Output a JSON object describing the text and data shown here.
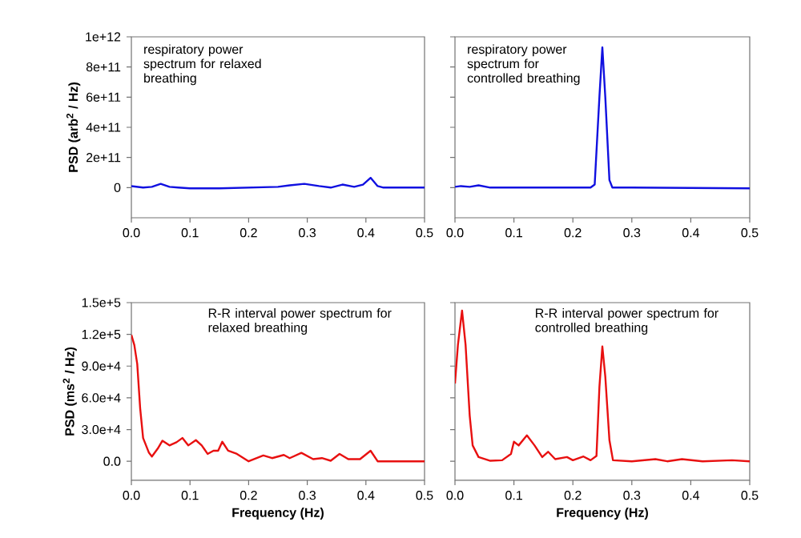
{
  "chart_data": [
    {
      "type": "line",
      "ylabel": "PSD (arb$^{2}$ / Hz)",
      "annotations": [
        "respiratory power spectrum for relaxed breathing"
      ],
      "color": "#1010e0",
      "grid": false,
      "x": [
        0,
        0.02,
        0.035,
        0.05,
        0.065,
        0.08,
        0.1,
        0.15,
        0.2,
        0.25,
        0.27,
        0.295,
        0.32,
        0.34,
        0.36,
        0.38,
        0.395,
        0.408,
        0.42,
        0.43,
        0.5
      ],
      "values": [
        10000000000.0,
        0,
        5000000000.0,
        25000000000.0,
        5000000000.0,
        0,
        -5000000000.0,
        -5000000000.0,
        0,
        5000000000.0,
        15000000000.0,
        25000000000.0,
        10000000000.0,
        0,
        20000000000.0,
        5000000000.0,
        20000000000.0,
        65000000000.0,
        10000000000.0,
        0,
        0
      ],
      "xlim": [
        0,
        0.5
      ],
      "ylim": [
        -200000000000.0,
        1000000000000.0
      ],
      "xticks": [
        {
          "value": 0,
          "label": "0.0"
        },
        {
          "value": 0.1,
          "label": "0.1"
        },
        {
          "value": 0.2,
          "label": "0.2"
        },
        {
          "value": 0.3,
          "label": "0.3"
        },
        {
          "value": 0.4,
          "label": "0.4"
        },
        {
          "value": 0.5,
          "label": "0.5"
        }
      ],
      "yticks": [
        0,
        {
          "value": 200000000000.0,
          "label": "2e+11"
        },
        {
          "value": 400000000000.0,
          "label": "4e+11"
        },
        {
          "value": 600000000000.0,
          "label": "6e+11"
        },
        {
          "value": 800000000000.0,
          "label": "8e+11"
        },
        {
          "value": 1000000000000.0,
          "label": "1e+12"
        }
      ]
    },
    {
      "type": "line",
      "annotations": [
        "respiratory power spectrum for controlled breathing"
      ],
      "color": "#1010e0",
      "grid": false,
      "tick_labels": "x",
      "x": [
        0,
        0.01,
        0.025,
        0.04,
        0.06,
        0.1,
        0.2,
        0.23,
        0.237,
        0.245,
        0.25,
        0.255,
        0.262,
        0.267,
        0.3,
        0.5
      ],
      "values": [
        5000000000.0,
        10000000000.0,
        5000000000.0,
        15000000000.0,
        0,
        0,
        0,
        0,
        20000000000.0,
        600000000000.0,
        930000000000.0,
        600000000000.0,
        50000000000.0,
        0,
        0,
        -5000000000.0
      ],
      "xlim": [
        0,
        0.5
      ],
      "ylim": [
        -200000000000.0,
        1000000000000.0
      ],
      "xticks": [
        {
          "value": 0,
          "label": "0.0"
        },
        {
          "value": 0.1,
          "label": "0.1"
        },
        {
          "value": 0.2,
          "label": "0.2"
        },
        {
          "value": 0.3,
          "label": "0.3"
        },
        {
          "value": 0.4,
          "label": "0.4"
        },
        {
          "value": 0.5,
          "label": "0.5"
        }
      ],
      "yticks": [
        {
          "value": 0,
          "label": null
        },
        {
          "value": 200000000000.0,
          "label": null
        },
        {
          "value": 400000000000.0,
          "label": null
        },
        {
          "value": 600000000000.0,
          "label": null
        },
        {
          "value": 800000000000.0,
          "label": null
        },
        {
          "value": 1000000000000.0,
          "label": null
        }
      ]
    },
    {
      "type": "line",
      "xlabel": "Frequency (Hz)",
      "ylabel": "PSD (ms$^{2}$ / Hz)",
      "annotations": [
        "R-R interval power spectrum for relaxed breathing"
      ],
      "color": "#e81010",
      "grid": false,
      "x": [
        0,
        0.005,
        0.01,
        0.015,
        0.02,
        0.03,
        0.035,
        0.045,
        0.053,
        0.065,
        0.077,
        0.087,
        0.097,
        0.11,
        0.12,
        0.13,
        0.14,
        0.148,
        0.155,
        0.165,
        0.18,
        0.2,
        0.225,
        0.24,
        0.26,
        0.27,
        0.29,
        0.31,
        0.325,
        0.34,
        0.355,
        0.37,
        0.39,
        0.408,
        0.42,
        0.5
      ],
      "values": [
        119500,
        110000,
        92000,
        50000,
        22000,
        8000,
        4500,
        12000,
        19500,
        15000,
        18000,
        22000,
        15000,
        20000,
        15000,
        7000,
        10000,
        10000,
        18500,
        10000,
        7000,
        0,
        5500,
        3000,
        6000,
        3000,
        8000,
        2000,
        3000,
        500,
        7000,
        2000,
        2000,
        10000,
        0,
        0
      ],
      "xlim": [
        0,
        0.5
      ],
      "ylim": [
        -18000,
        150000
      ],
      "xticks": [
        {
          "value": 0,
          "label": "0.0"
        },
        {
          "value": 0.1,
          "label": "0.1"
        },
        {
          "value": 0.2,
          "label": "0.2"
        },
        {
          "value": 0.3,
          "label": "0.3"
        },
        {
          "value": 0.4,
          "label": "0.4"
        },
        {
          "value": 0.5,
          "label": "0.5"
        }
      ],
      "yticks": [
        {
          "value": 0,
          "label": "0.0"
        },
        {
          "value": 30000,
          "label": "3.0e+4"
        },
        {
          "value": 60000,
          "label": "6.0e+4"
        },
        {
          "value": 90000,
          "label": "9.0e+4"
        },
        {
          "value": 120000,
          "label": "1.2e+5"
        },
        {
          "value": 150000,
          "label": "1.5e+5"
        }
      ]
    },
    {
      "type": "line",
      "xlabel": "Frequency (Hz)",
      "annotations": [
        "R-R interval power spectrum for controlled breathing"
      ],
      "color": "#e81010",
      "grid": false,
      "tick_labels": "x",
      "x": [
        0,
        0.005,
        0.012,
        0.018,
        0.025,
        0.03,
        0.04,
        0.06,
        0.08,
        0.095,
        0.1,
        0.108,
        0.122,
        0.135,
        0.148,
        0.158,
        0.17,
        0.19,
        0.2,
        0.218,
        0.23,
        0.24,
        0.245,
        0.25,
        0.255,
        0.262,
        0.268,
        0.3,
        0.34,
        0.36,
        0.385,
        0.42,
        0.47,
        0.5
      ],
      "values": [
        73500,
        110000,
        142500,
        110000,
        43000,
        15000,
        4000,
        500,
        1000,
        7000,
        18500,
        15000,
        24500,
        15000,
        4000,
        9000,
        2000,
        4000,
        1000,
        4500,
        1000,
        5000,
        70000,
        108500,
        80000,
        20000,
        1000,
        0,
        2000,
        0,
        2000,
        0,
        1000,
        0
      ],
      "xlim": [
        0,
        0.5
      ],
      "ylim": [
        -18000,
        150000
      ],
      "xticks": [
        {
          "value": 0,
          "label": "0.0"
        },
        {
          "value": 0.1,
          "label": "0.1"
        },
        {
          "value": 0.2,
          "label": "0.2"
        },
        {
          "value": 0.3,
          "label": "0.3"
        },
        {
          "value": 0.4,
          "label": "0.4"
        },
        {
          "value": 0.5,
          "label": "0.5"
        }
      ],
      "yticks": [
        {
          "value": 0,
          "label": null
        },
        {
          "value": 30000,
          "label": null
        },
        {
          "value": 60000,
          "label": null
        },
        {
          "value": 90000,
          "label": null
        },
        {
          "value": 120000,
          "label": null
        },
        {
          "value": 150000,
          "label": null
        }
      ]
    }
  ]
}
